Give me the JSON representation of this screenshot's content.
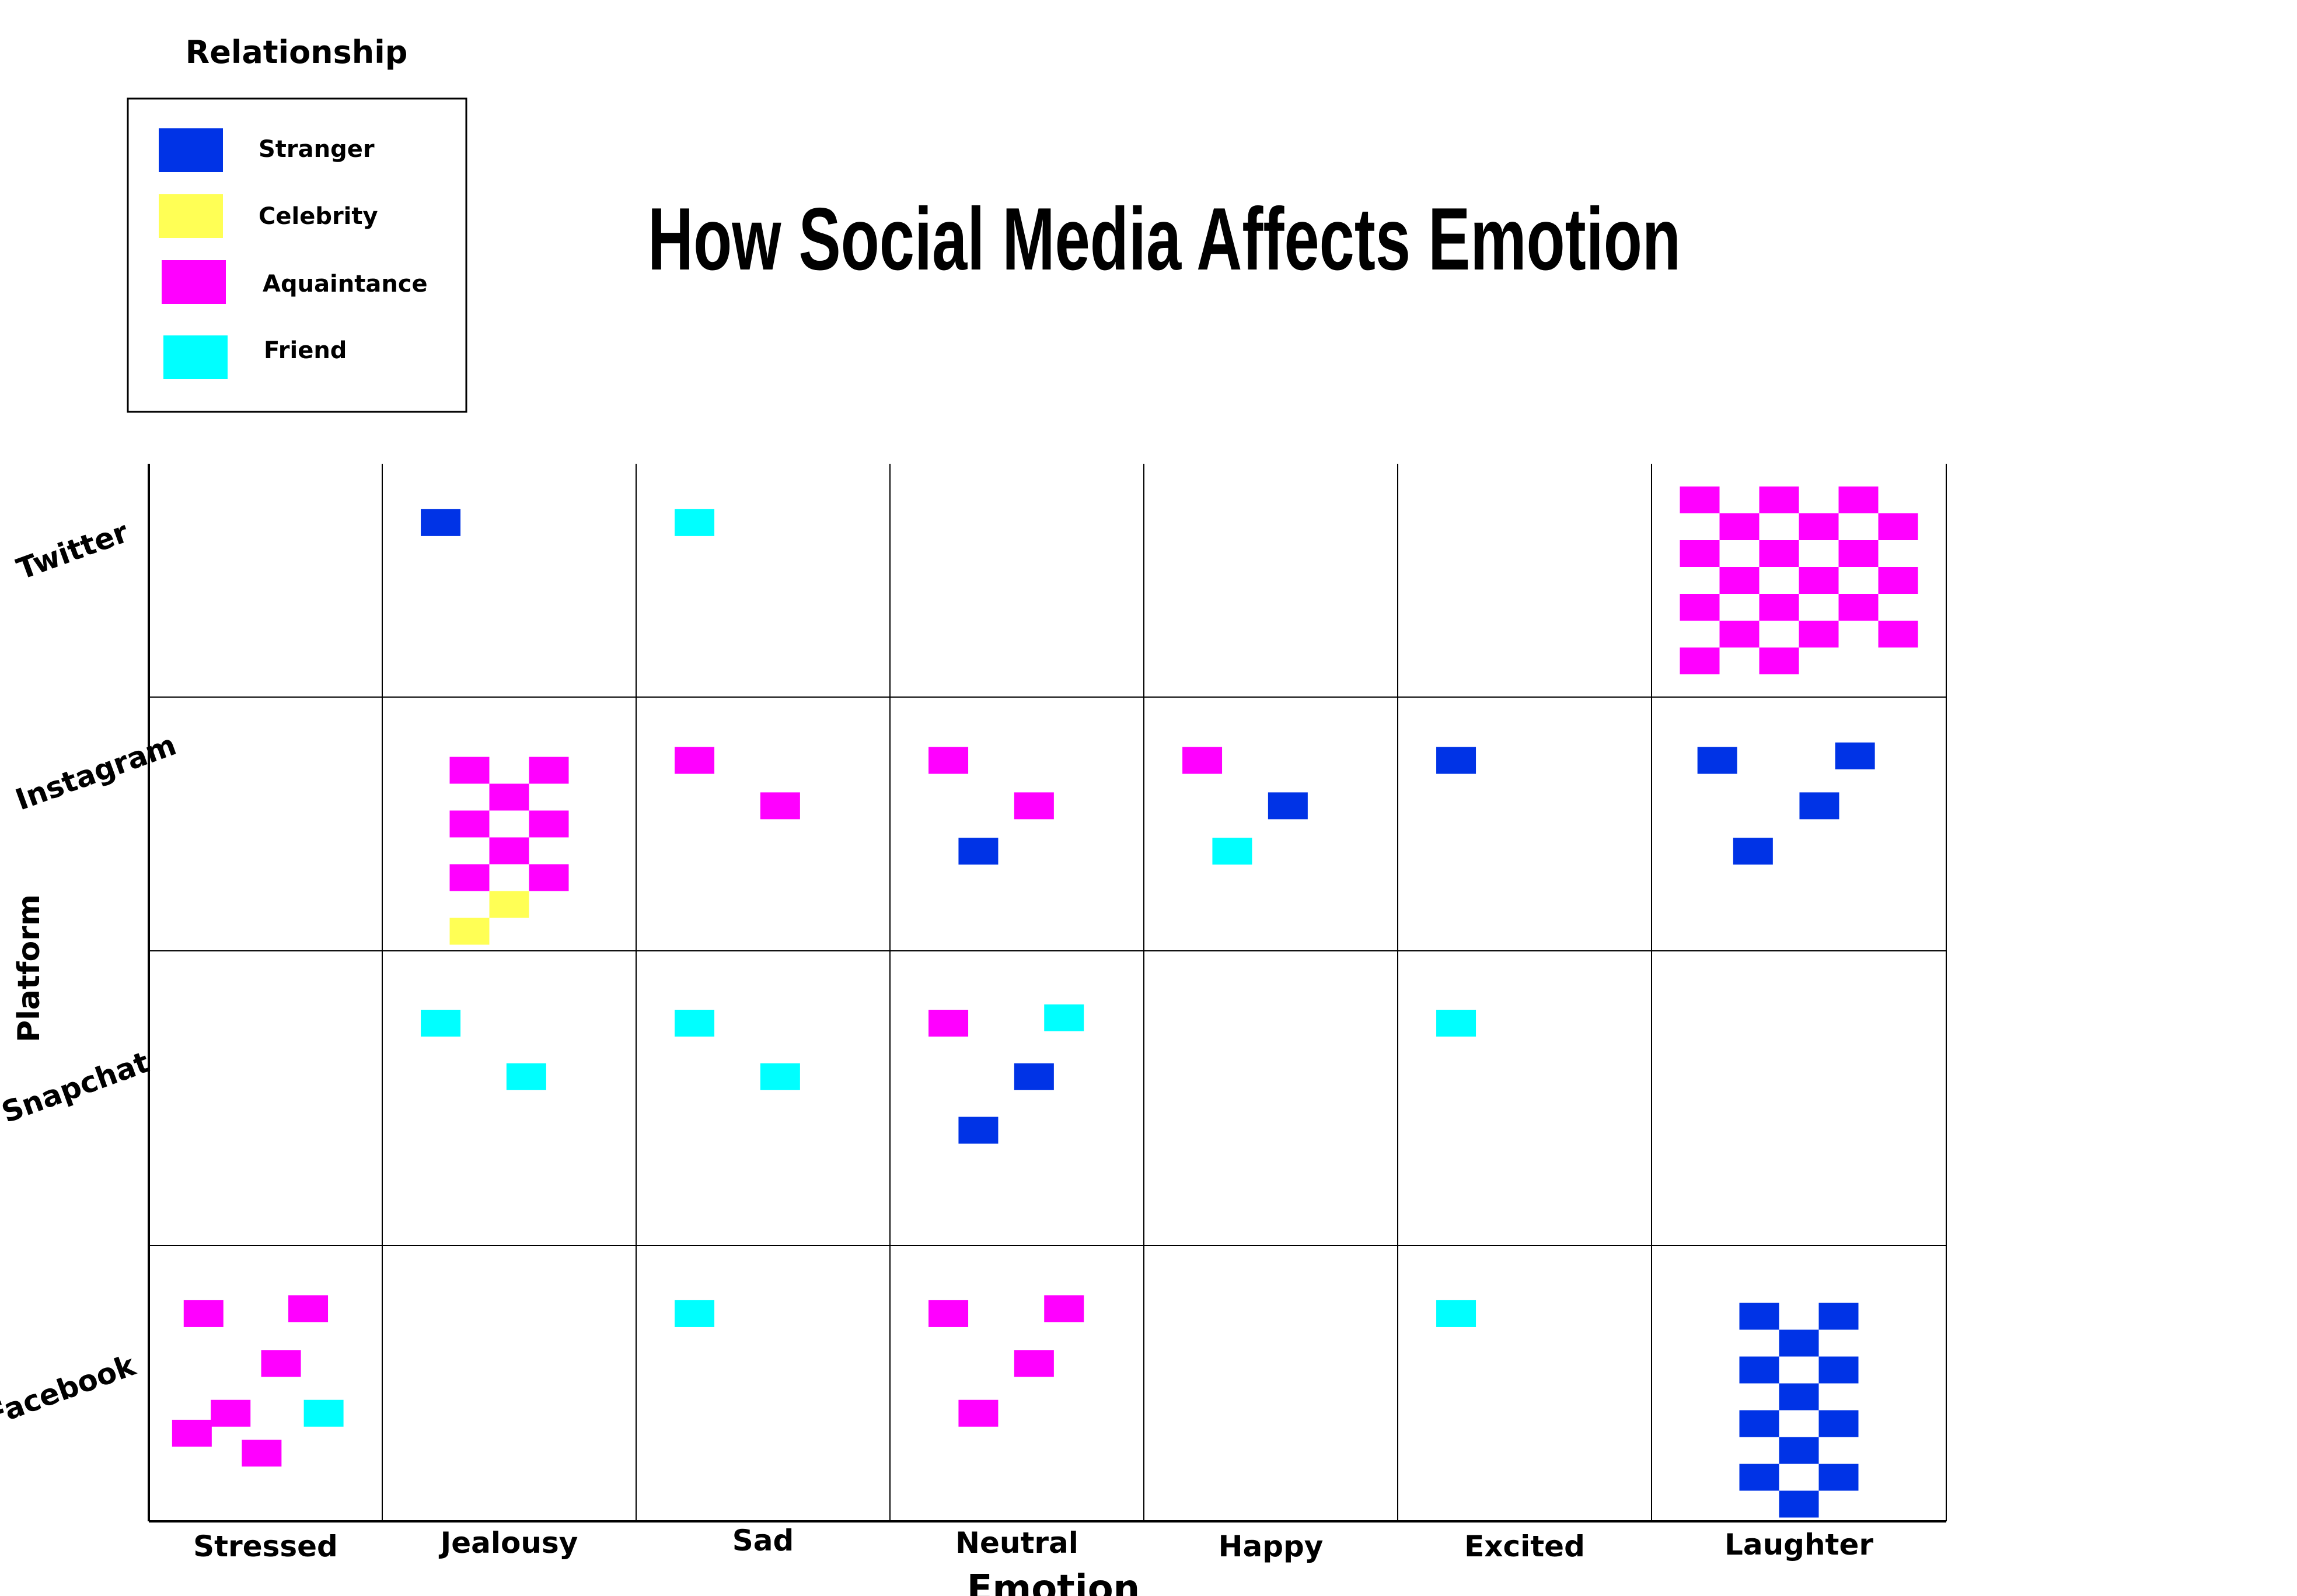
{
  "chart_data": {
    "type": "heatmap",
    "title": "How Social Media Affects Emotion",
    "xlabel": "Emotion",
    "ylabel": "Platform",
    "x_categories": [
      "Stressed",
      "Jealousy",
      "Sad",
      "Neutral",
      "Happy",
      "Excited",
      "Laughter"
    ],
    "y_categories": [
      "Twitter",
      "Instagram",
      "Snapchat",
      "Facebook"
    ],
    "legend": {
      "title": "Relationship",
      "placement": "top-left",
      "items": [
        {
          "label": "Stranger",
          "color": "#0033e6"
        },
        {
          "label": "Celebrity",
          "color": "#ffff55"
        },
        {
          "label": "Aquaintance",
          "color": "#ff00ff"
        },
        {
          "label": "Friend",
          "color": "#00ffff"
        }
      ]
    },
    "grid": true,
    "counts_note_unit": "squares per cell",
    "cells": [
      {
        "platform": "Twitter",
        "emotion": "Jealousy",
        "Stranger": 1,
        "Celebrity": 0,
        "Aquaintance": 0,
        "Friend": 0
      },
      {
        "platform": "Twitter",
        "emotion": "Sad",
        "Stranger": 0,
        "Celebrity": 0,
        "Aquaintance": 0,
        "Friend": 1
      },
      {
        "platform": "Twitter",
        "emotion": "Laughter",
        "Stranger": 0,
        "Celebrity": 0,
        "Aquaintance": 20,
        "Friend": 0
      },
      {
        "platform": "Instagram",
        "emotion": "Jealousy",
        "Stranger": 0,
        "Celebrity": 2,
        "Aquaintance": 8,
        "Friend": 0
      },
      {
        "platform": "Instagram",
        "emotion": "Sad",
        "Stranger": 0,
        "Celebrity": 0,
        "Aquaintance": 2,
        "Friend": 0
      },
      {
        "platform": "Instagram",
        "emotion": "Neutral",
        "Stranger": 1,
        "Celebrity": 0,
        "Aquaintance": 2,
        "Friend": 0
      },
      {
        "platform": "Instagram",
        "emotion": "Happy",
        "Stranger": 1,
        "Celebrity": 0,
        "Aquaintance": 1,
        "Friend": 1
      },
      {
        "platform": "Instagram",
        "emotion": "Excited",
        "Stranger": 1,
        "Celebrity": 0,
        "Aquaintance": 0,
        "Friend": 0
      },
      {
        "platform": "Instagram",
        "emotion": "Laughter",
        "Stranger": 4,
        "Celebrity": 0,
        "Aquaintance": 0,
        "Friend": 0
      },
      {
        "platform": "Snapchat",
        "emotion": "Jealousy",
        "Stranger": 0,
        "Celebrity": 0,
        "Aquaintance": 0,
        "Friend": 2
      },
      {
        "platform": "Snapchat",
        "emotion": "Sad",
        "Stranger": 0,
        "Celebrity": 0,
        "Aquaintance": 0,
        "Friend": 2
      },
      {
        "platform": "Snapchat",
        "emotion": "Neutral",
        "Stranger": 2,
        "Celebrity": 0,
        "Aquaintance": 1,
        "Friend": 1
      },
      {
        "platform": "Snapchat",
        "emotion": "Excited",
        "Stranger": 0,
        "Celebrity": 0,
        "Aquaintance": 0,
        "Friend": 1
      },
      {
        "platform": "Facebook",
        "emotion": "Stressed",
        "Stranger": 0,
        "Celebrity": 0,
        "Aquaintance": 6,
        "Friend": 1
      },
      {
        "platform": "Facebook",
        "emotion": "Sad",
        "Stranger": 0,
        "Celebrity": 0,
        "Aquaintance": 0,
        "Friend": 1
      },
      {
        "platform": "Facebook",
        "emotion": "Neutral",
        "Stranger": 0,
        "Celebrity": 0,
        "Aquaintance": 4,
        "Friend": 0
      },
      {
        "platform": "Facebook",
        "emotion": "Excited",
        "Stranger": 0,
        "Celebrity": 0,
        "Aquaintance": 0,
        "Friend": 1
      },
      {
        "platform": "Facebook",
        "emotion": "Laughter",
        "Stranger": 12,
        "Celebrity": 0,
        "Aquaintance": 0,
        "Friend": 0
      }
    ]
  }
}
